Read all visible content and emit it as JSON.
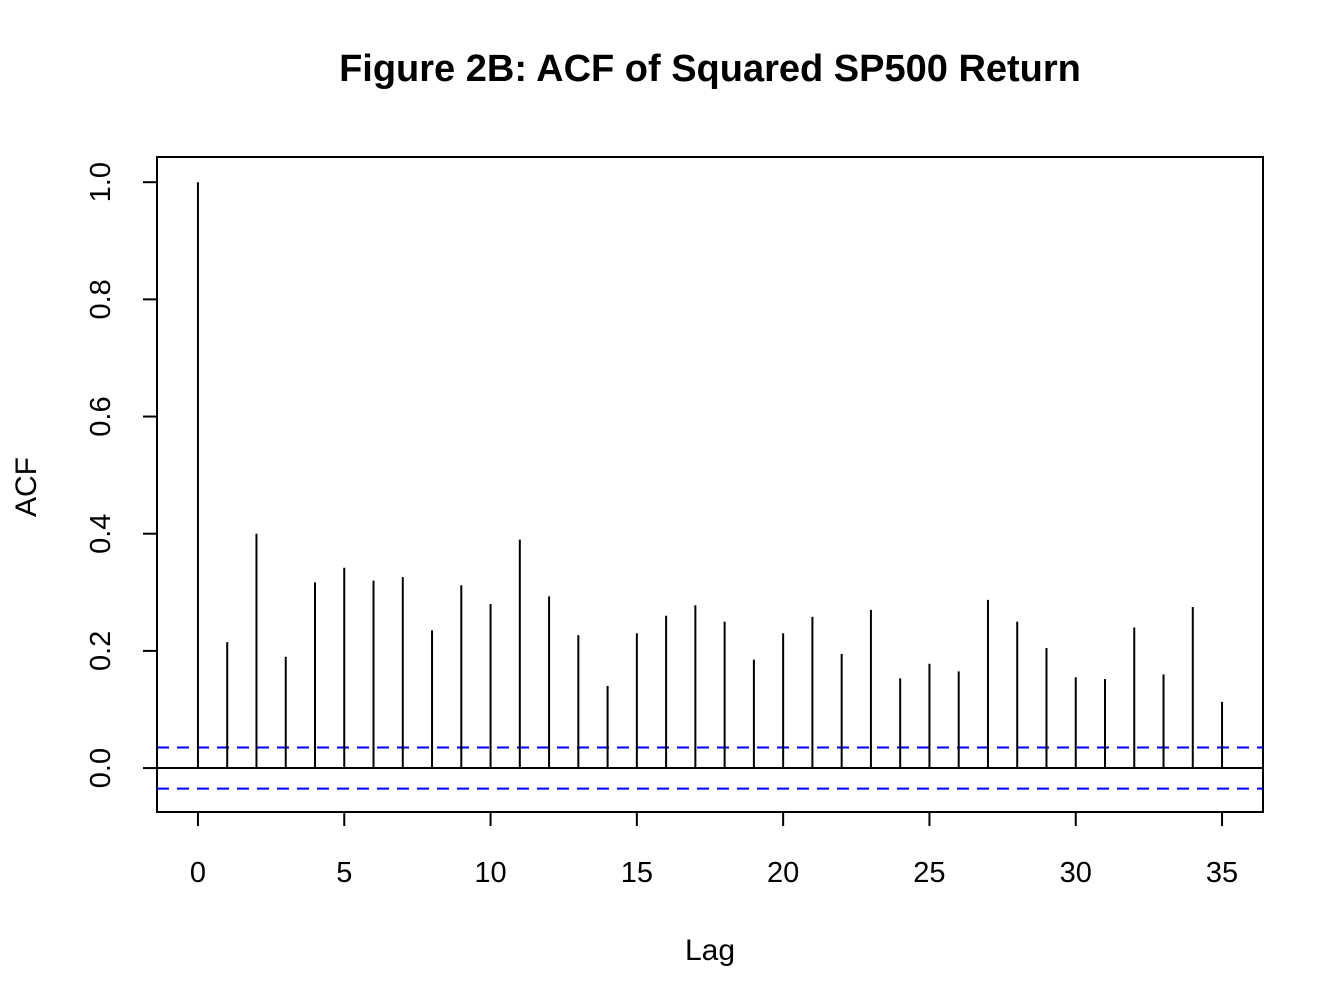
{
  "chart_data": {
    "type": "bar",
    "subtype": "acf-stem",
    "title": "Figure 2B: ACF of Squared SP500 Return",
    "xlabel": "Lag",
    "ylabel": "ACF",
    "x": [
      0,
      1,
      2,
      3,
      4,
      5,
      6,
      7,
      8,
      9,
      10,
      11,
      12,
      13,
      14,
      15,
      16,
      17,
      18,
      19,
      20,
      21,
      22,
      23,
      24,
      25,
      26,
      27,
      28,
      29,
      30,
      31,
      32,
      33,
      34,
      35
    ],
    "values": [
      1.0,
      0.215,
      0.4,
      0.19,
      0.317,
      0.342,
      0.32,
      0.326,
      0.235,
      0.312,
      0.28,
      0.39,
      0.293,
      0.227,
      0.14,
      0.23,
      0.26,
      0.278,
      0.25,
      0.185,
      0.23,
      0.258,
      0.195,
      0.27,
      0.153,
      0.178,
      0.165,
      0.287,
      0.25,
      0.205,
      0.155,
      0.152,
      0.24,
      0.16,
      0.275,
      0.113
    ],
    "confidence_bounds": [
      0.035,
      -0.035
    ],
    "xlim": [
      -1.4,
      36.4
    ],
    "ylim": [
      -0.075,
      1.043
    ],
    "xticks": [
      "0",
      "5",
      "10",
      "15",
      "20",
      "25",
      "30",
      "35"
    ],
    "yticks": [
      "0.0",
      "0.2",
      "0.4",
      "0.6",
      "0.8",
      "1.0"
    ],
    "grid": false,
    "legend": "none",
    "colors": {
      "stems": "#000000",
      "confidence_lines": "#0000ff",
      "zero_line": "#000000",
      "frame": "#000000"
    }
  }
}
